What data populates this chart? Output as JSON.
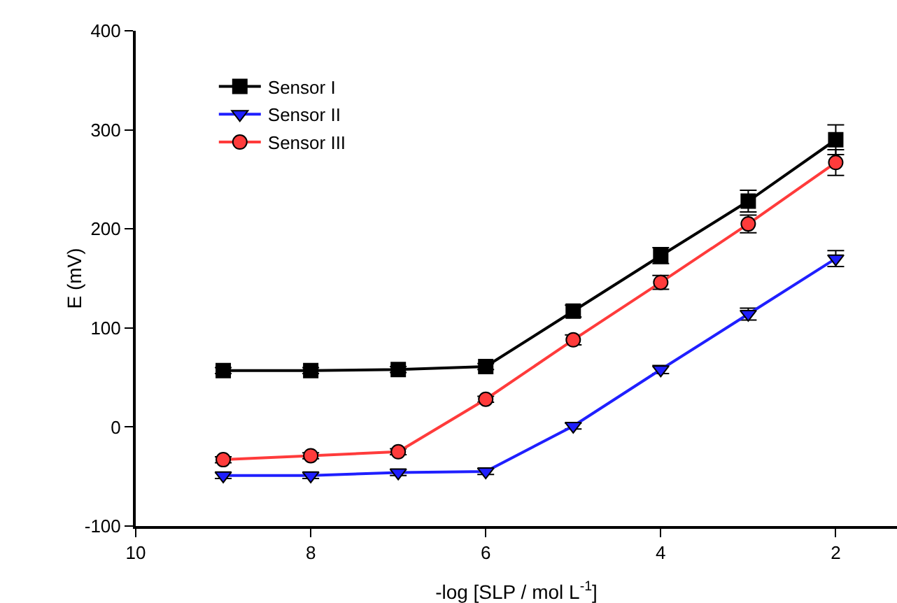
{
  "chart_data": {
    "type": "line",
    "xlabel": "-log [SLP / mol L$^{-1}$]",
    "ylabel": "E (mV)",
    "x": [
      9,
      8,
      7,
      6,
      5,
      4,
      3,
      2
    ],
    "xlim": [
      10,
      1.3
    ],
    "xticks": [
      10,
      8,
      6,
      4,
      2
    ],
    "ylim": [
      -100,
      400
    ],
    "yticks": [
      -100,
      0,
      100,
      200,
      300,
      400
    ],
    "grid": false,
    "legend": "top left",
    "line_style": "solid",
    "series": [
      {
        "name": "Sensor I",
        "color": "#000000",
        "marker": "square",
        "values": [
          57,
          57,
          58,
          61,
          117,
          173,
          228,
          290
        ],
        "errors": [
          3,
          3,
          3,
          3,
          6,
          8,
          11,
          15
        ]
      },
      {
        "name": "Sensor II",
        "color": "#1f1fff",
        "marker": "triangle",
        "values": [
          -49,
          -49,
          -46,
          -45,
          1,
          58,
          114,
          170
        ],
        "errors": [
          3,
          3,
          3,
          3,
          3,
          4,
          6,
          8
        ]
      },
      {
        "name": "Sensor III",
        "color": "#ff3b3b",
        "marker": "circle",
        "values": [
          -33,
          -29,
          -25,
          28,
          88,
          146,
          205,
          267
        ],
        "errors": [
          3,
          3,
          3,
          3,
          5,
          7,
          9,
          13
        ]
      }
    ]
  }
}
